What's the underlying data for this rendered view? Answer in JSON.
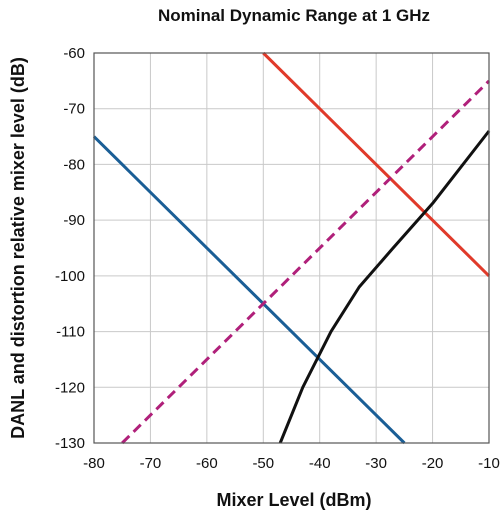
{
  "chart_data": {
    "type": "line",
    "title": "Nominal Dynamic Range at 1 GHz",
    "xlabel": "Mixer Level (dBm)",
    "ylabel": "DANL and distortion relative mixer level (dB)",
    "xlim": [
      -80,
      -10
    ],
    "ylim": [
      -130,
      -60
    ],
    "xticks": [
      "-80",
      "-70",
      "-60",
      "-50",
      "-40",
      "-30",
      "-20",
      "-10"
    ],
    "yticks": [
      "-60",
      "-70",
      "-80",
      "-90",
      "-100",
      "-110",
      "-120",
      "-130"
    ],
    "grid": true,
    "series": [
      {
        "color": "#1a5e96",
        "style": "solid",
        "points": [
          [
            -80,
            -75
          ],
          [
            -25,
            -130
          ]
        ]
      },
      {
        "color": "#e03a2a",
        "style": "solid",
        "points": [
          [
            -50,
            -60
          ],
          [
            -10,
            -100
          ]
        ]
      },
      {
        "color": "#b0207a",
        "style": "dashed",
        "points": [
          [
            -75,
            -130
          ],
          [
            -10,
            -65
          ]
        ]
      },
      {
        "color": "#111111",
        "style": "solid",
        "points": [
          [
            -47,
            -130
          ],
          [
            -43,
            -120
          ],
          [
            -38,
            -110
          ],
          [
            -33,
            -102
          ],
          [
            -27,
            -95
          ],
          [
            -20,
            -87
          ],
          [
            -10,
            -74
          ]
        ]
      }
    ]
  }
}
